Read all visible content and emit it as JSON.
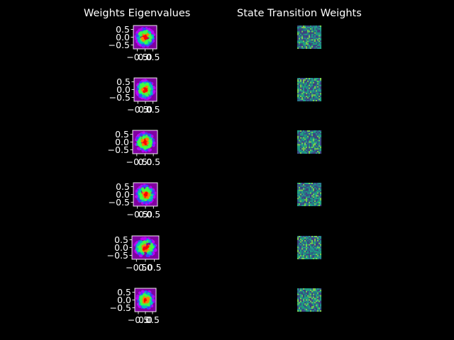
{
  "figure": {
    "background": "#000000",
    "text_color": "#ffffff",
    "left_title": "Weights Eigenvalues",
    "right_title": "State Transition Weights"
  },
  "chart_data": {
    "type": "scatter",
    "panel_count": 6,
    "left_column": {
      "title": "Weights Eigenvalues",
      "kind": "eigenvalue scatter (complex plane), dense disc cloud",
      "xlim": [
        -0.75,
        0.75
      ],
      "ylim": [
        -0.75,
        0.75
      ],
      "xticks": [
        -0.5,
        0.0,
        0.5
      ],
      "xtick_labels": [
        "−0.5",
        "0.0",
        "0.5"
      ],
      "yticks": [
        0.5,
        0.0,
        -0.5
      ],
      "ytick_labels": [
        "0.5",
        "0.0",
        "−0.5"
      ],
      "cloud_radius": 0.6,
      "point_colormap": [
        "#ff0000",
        "#ff8000",
        "#40ff40",
        "#00c0c0",
        "#4040ff",
        "#c000ff"
      ],
      "panel_background": "#8000a0"
    },
    "right_column": {
      "title": "State Transition Weights",
      "kind": "heatmap of random weight matrix",
      "colormap": [
        "#2a788e",
        "#22a884",
        "#414487",
        "#7ad151",
        "#3b528b",
        "#1f9e89"
      ]
    }
  }
}
